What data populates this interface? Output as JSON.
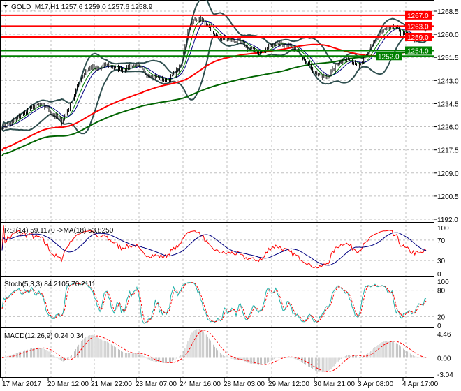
{
  "chart_data": {
    "type": "candlestick",
    "symbol_header": "GOLD_M17,H1  1257.6 1259.0 1257.6 1258.9",
    "price_ticks": [
      "1268.5",
      "1260.0",
      "1251.5",
      "1243.0",
      "1234.5",
      "1226.0",
      "1217.5",
      "1209.0",
      "1200.5",
      "1192.0"
    ],
    "ylim": [
      1192.0,
      1268.5
    ],
    "levels": [
      {
        "value": 1267.0,
        "label": "1267.0",
        "color": "#ff0000"
      },
      {
        "value": 1263.0,
        "label": "1263.0",
        "color": "#ff0000"
      },
      {
        "value": 1259.0,
        "label": "1259.0",
        "color": "#ff0000"
      },
      {
        "value": 1254.0,
        "label": "1254.0",
        "color": "#008000"
      },
      {
        "value": 1252.0,
        "label": "1252.0",
        "color": "#008000"
      }
    ],
    "close_anchors": [
      1226,
      1227,
      1229,
      1231,
      1233,
      1234,
      1233,
      1230,
      1228,
      1233,
      1240,
      1246,
      1248,
      1247,
      1249,
      1248,
      1247,
      1248,
      1249,
      1246,
      1245,
      1244,
      1243,
      1245,
      1248,
      1262,
      1266,
      1265,
      1261,
      1259,
      1258,
      1258,
      1257,
      1255,
      1254,
      1253,
      1256,
      1257,
      1256,
      1255,
      1253,
      1250,
      1246,
      1244,
      1245,
      1249,
      1251,
      1250,
      1249,
      1252,
      1257,
      1261,
      1262,
      1262,
      1260,
      1259,
      1258,
      1258.9
    ],
    "x_ticks": [
      "17 Mar 2017",
      "20 Mar 12:00",
      "21 Mar 22:00",
      "23 Mar 07:00",
      "24 Mar 16:00",
      "28 Mar 03:00",
      "29 Mar 12:00",
      "30 Mar 21:00",
      "3 Apr 08:00",
      "4 Apr 17:00"
    ],
    "rsi": {
      "label": "RSI(14) 59.1170  ->MA(18) 53.8250",
      "ticks": [
        "100",
        "70",
        "30",
        "0"
      ]
    },
    "stoch": {
      "label": "Stoch(5,3,3) 84.2105 70.2111",
      "ticks": [
        "100",
        "80",
        "20",
        "0"
      ]
    },
    "macd": {
      "label": "MACD(12,26,9) 0.24 0.34",
      "ticks": [
        "4.46",
        "0.00",
        "-3.04"
      ]
    },
    "colors": {
      "up": "#000000",
      "ma_fast": "#ff0000",
      "ma_slow": "#006400",
      "bands": "#2f4f4f",
      "rsi": "#ff0000",
      "rsi_ma": "#000080",
      "stoch_main": "#20b2aa",
      "stoch_signal": "#ff0000",
      "macd_hist": "#c0c0c0",
      "macd_signal": "#ff0000"
    }
  }
}
